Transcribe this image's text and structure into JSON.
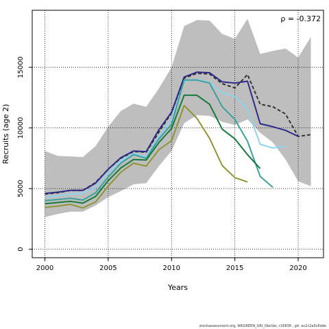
{
  "chart_data": {
    "type": "line",
    "xlabel": "Years",
    "ylabel": "Recruits (age 2)",
    "annotation": "ρ = -0.372",
    "xlim": [
      1999,
      2022
    ],
    "ylim": [
      -700,
      19700
    ],
    "x_ticks": [
      2000,
      2005,
      2010,
      2015,
      2020
    ],
    "y_ticks": [
      0,
      5000,
      10000,
      15000
    ],
    "grid": "dotted at ticks",
    "band": {
      "color": "#bebebe",
      "x": [
        2000,
        2001,
        2002,
        2003,
        2004,
        2005,
        2006,
        2007,
        2008,
        2009,
        2010,
        2011,
        2012,
        2013,
        2014,
        2015,
        2016,
        2017,
        2018,
        2019,
        2020,
        2021
      ],
      "upper": [
        8100,
        7700,
        7650,
        7600,
        8500,
        10100,
        11400,
        12000,
        11750,
        13250,
        15000,
        18400,
        18900,
        18850,
        17750,
        17350,
        19000,
        16100,
        16350,
        16550,
        15800,
        17500
      ],
      "lower": [
        2650,
        2900,
        3100,
        3100,
        3600,
        4300,
        4800,
        5350,
        5450,
        6850,
        8100,
        10400,
        11050,
        11000,
        10500,
        10250,
        10700,
        9600,
        8800,
        7400,
        5600,
        5200
      ]
    },
    "series": [
      {
        "color": "#333333",
        "dashed": true,
        "x": [
          2000,
          2001,
          2002,
          2003,
          2004,
          2005,
          2006,
          2007,
          2008,
          2009,
          2010,
          2011,
          2012,
          2013,
          2014,
          2015,
          2016,
          2017,
          2018,
          2019,
          2020,
          2021
        ],
        "values": [
          4550,
          4650,
          4850,
          4850,
          5500,
          6600,
          7500,
          8050,
          8000,
          9650,
          11250,
          14100,
          14500,
          14450,
          13650,
          13300,
          14400,
          11950,
          11750,
          11150,
          9300,
          9450
        ]
      },
      {
        "color": "#2e2a8a",
        "x": [
          2000,
          2001,
          2002,
          2003,
          2004,
          2005,
          2006,
          2007,
          2008,
          2009,
          2010,
          2011,
          2012,
          2013,
          2014,
          2015,
          2016,
          2017,
          2018,
          2019,
          2020
        ],
        "values": [
          4600,
          4700,
          4850,
          4850,
          5450,
          6600,
          7550,
          8100,
          8050,
          9850,
          11300,
          14200,
          14600,
          14550,
          13800,
          13700,
          13850,
          10350,
          10100,
          9800,
          9300
        ]
      },
      {
        "color": "#8dd3f0",
        "x": [
          2000,
          2001,
          2002,
          2003,
          2004,
          2005,
          2006,
          2007,
          2008,
          2009,
          2010,
          2011,
          2012,
          2013,
          2014,
          2015,
          2016,
          2017,
          2018,
          2019
        ],
        "values": [
          4300,
          4400,
          4550,
          4600,
          5100,
          6300,
          7300,
          7900,
          7600,
          9300,
          10700,
          13850,
          14000,
          13750,
          12900,
          12600,
          11550,
          8650,
          8350,
          8500
        ]
      },
      {
        "color": "#3aa29a",
        "x": [
          2000,
          2001,
          2002,
          2003,
          2004,
          2005,
          2006,
          2007,
          2008,
          2009,
          2010,
          2011,
          2012,
          2013,
          2014,
          2015,
          2016,
          2017,
          2018
        ],
        "values": [
          4000,
          4100,
          4200,
          4050,
          4650,
          5950,
          7100,
          7800,
          7500,
          9100,
          10300,
          13950,
          13950,
          13700,
          11750,
          10700,
          8900,
          6000,
          5100
        ]
      },
      {
        "color": "#157a3c",
        "x": [
          2000,
          2001,
          2002,
          2003,
          2004,
          2005,
          2006,
          2007,
          2008,
          2009,
          2010,
          2011,
          2012,
          2013,
          2014,
          2015,
          2016,
          2017
        ],
        "values": [
          3750,
          3850,
          3950,
          3800,
          4350,
          5650,
          6700,
          7400,
          7350,
          8800,
          9950,
          12700,
          12700,
          11950,
          9900,
          9100,
          7800,
          6650
        ]
      },
      {
        "color": "#8e9334",
        "x": [
          2000,
          2001,
          2002,
          2003,
          2004,
          2005,
          2006,
          2007,
          2008,
          2009,
          2010,
          2011,
          2012,
          2013,
          2014,
          2015,
          2016
        ],
        "values": [
          3450,
          3550,
          3700,
          3400,
          3900,
          5200,
          6350,
          7100,
          6850,
          8200,
          8950,
          11850,
          10800,
          9150,
          6900,
          5900,
          5550
        ]
      }
    ]
  },
  "footer": "stockassessment.org, WKGREEN_GRI_ObsVar, r16838 , git: ec2c2a0c6dde"
}
